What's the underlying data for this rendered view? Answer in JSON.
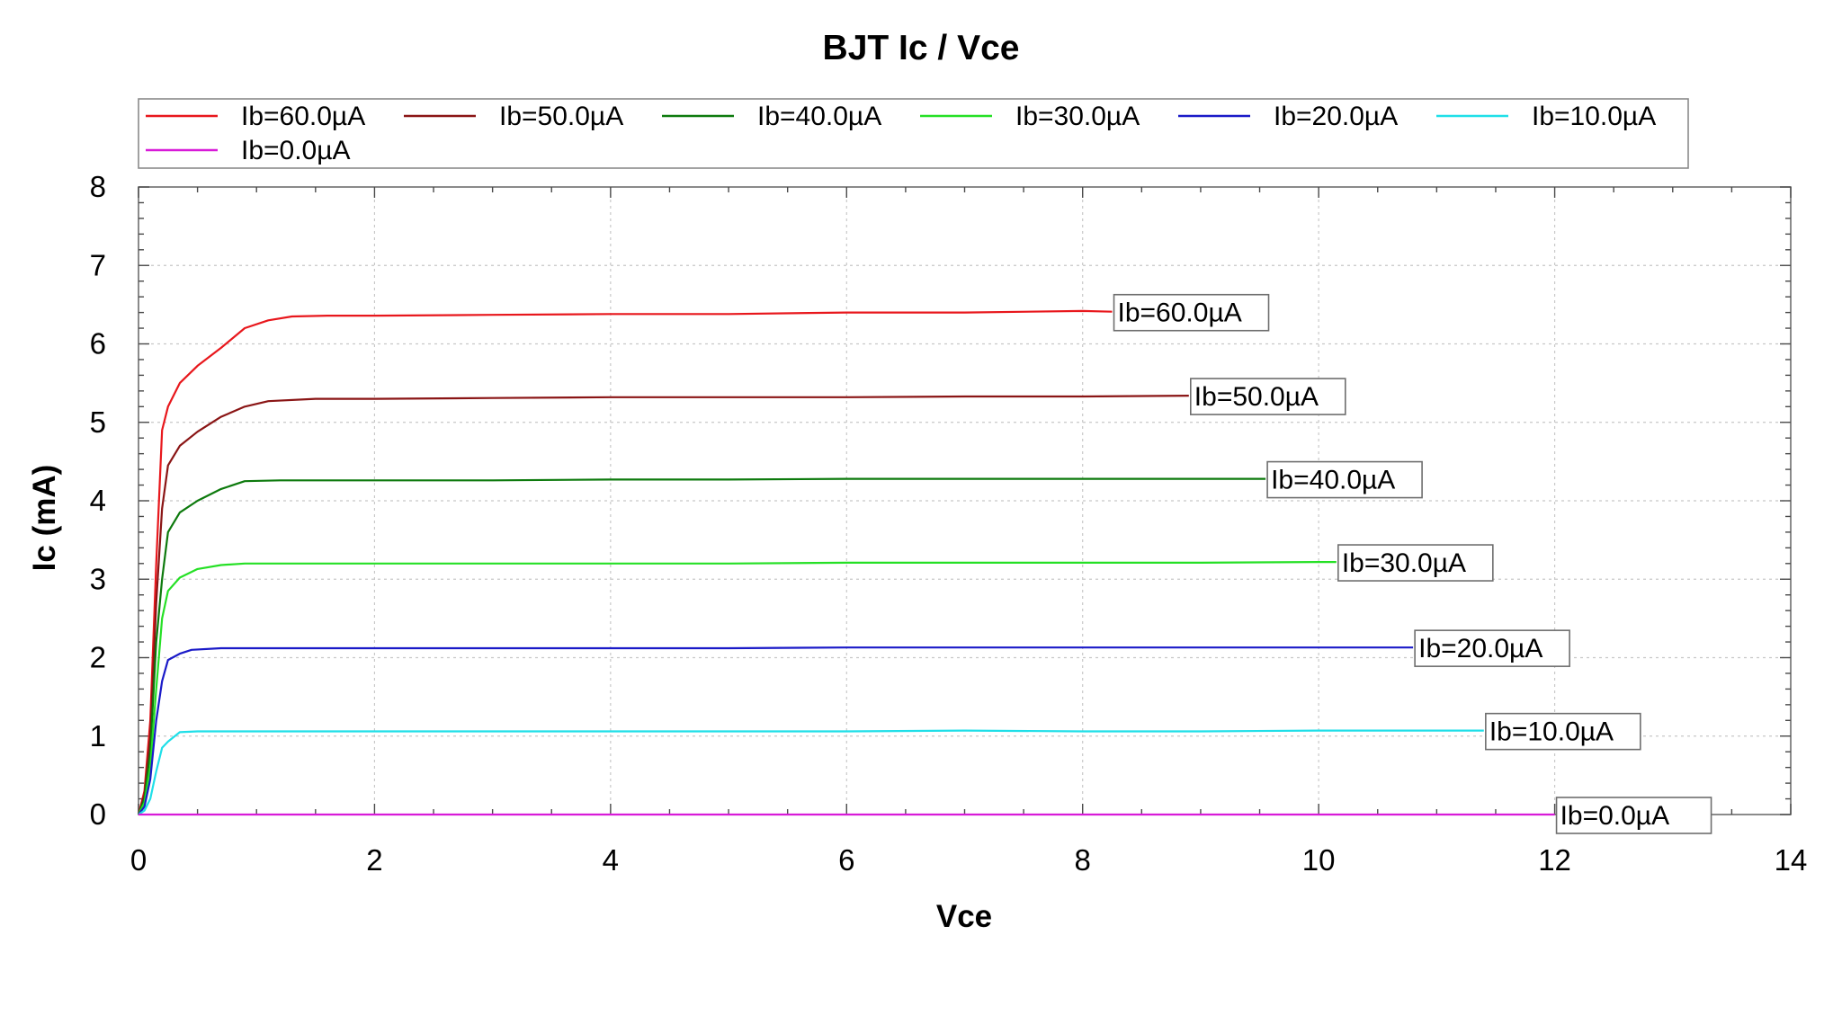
{
  "chart_data": {
    "type": "line",
    "title": "BJT Ic / Vce",
    "xlabel": "Vce",
    "ylabel": "Ic (mA)",
    "xlim": [
      0,
      14
    ],
    "ylim": [
      0,
      8
    ],
    "xticks": [
      "0",
      "2",
      "4",
      "6",
      "8",
      "10",
      "12",
      "14"
    ],
    "yticks": [
      "0",
      "1",
      "2",
      "3",
      "4",
      "5",
      "6",
      "7",
      "8"
    ],
    "grid": true,
    "legend": "top",
    "series": [
      {
        "name": "Ib=60.0µA",
        "color": "#e8171c",
        "end_label": "Ib=60.0µA",
        "points": [
          [
            0,
            0
          ],
          [
            0.05,
            0.3
          ],
          [
            0.1,
            1.2
          ],
          [
            0.15,
            3.2
          ],
          [
            0.2,
            4.9
          ],
          [
            0.25,
            5.2
          ],
          [
            0.35,
            5.5
          ],
          [
            0.5,
            5.72
          ],
          [
            0.7,
            5.95
          ],
          [
            0.9,
            6.2
          ],
          [
            1.1,
            6.3
          ],
          [
            1.3,
            6.35
          ],
          [
            1.6,
            6.36
          ],
          [
            2,
            6.36
          ],
          [
            3,
            6.37
          ],
          [
            4,
            6.38
          ],
          [
            5,
            6.38
          ],
          [
            6,
            6.4
          ],
          [
            7,
            6.4
          ],
          [
            8,
            6.42
          ],
          [
            8.25,
            6.41
          ]
        ]
      },
      {
        "name": "Ib=50.0µA",
        "color": "#8a1515",
        "end_label": "Ib=50.0µA",
        "points": [
          [
            0,
            0
          ],
          [
            0.05,
            0.25
          ],
          [
            0.1,
            1.0
          ],
          [
            0.15,
            2.7
          ],
          [
            0.2,
            3.9
          ],
          [
            0.25,
            4.45
          ],
          [
            0.35,
            4.7
          ],
          [
            0.5,
            4.88
          ],
          [
            0.7,
            5.07
          ],
          [
            0.9,
            5.2
          ],
          [
            1.1,
            5.27
          ],
          [
            1.5,
            5.3
          ],
          [
            2,
            5.3
          ],
          [
            3,
            5.31
          ],
          [
            4,
            5.32
          ],
          [
            5,
            5.32
          ],
          [
            6,
            5.32
          ],
          [
            7,
            5.33
          ],
          [
            8,
            5.33
          ],
          [
            8.9,
            5.34
          ]
        ]
      },
      {
        "name": "Ib=40.0µA",
        "color": "#0d7a0d",
        "end_label": "Ib=40.0µA",
        "points": [
          [
            0,
            0
          ],
          [
            0.05,
            0.2
          ],
          [
            0.1,
            0.8
          ],
          [
            0.15,
            2.2
          ],
          [
            0.2,
            3.0
          ],
          [
            0.25,
            3.6
          ],
          [
            0.35,
            3.85
          ],
          [
            0.5,
            4.0
          ],
          [
            0.7,
            4.15
          ],
          [
            0.9,
            4.25
          ],
          [
            1.2,
            4.26
          ],
          [
            2,
            4.26
          ],
          [
            3,
            4.26
          ],
          [
            4,
            4.27
          ],
          [
            5,
            4.27
          ],
          [
            6,
            4.28
          ],
          [
            7,
            4.28
          ],
          [
            8,
            4.28
          ],
          [
            9,
            4.28
          ],
          [
            9.55,
            4.28
          ]
        ]
      },
      {
        "name": "Ib=30.0µA",
        "color": "#25e025",
        "end_label": "Ib=30.0µA",
        "points": [
          [
            0,
            0
          ],
          [
            0.05,
            0.15
          ],
          [
            0.1,
            0.6
          ],
          [
            0.15,
            1.6
          ],
          [
            0.2,
            2.5
          ],
          [
            0.25,
            2.85
          ],
          [
            0.35,
            3.02
          ],
          [
            0.5,
            3.13
          ],
          [
            0.7,
            3.18
          ],
          [
            0.9,
            3.2
          ],
          [
            1.5,
            3.2
          ],
          [
            2,
            3.2
          ],
          [
            3,
            3.2
          ],
          [
            4,
            3.2
          ],
          [
            5,
            3.2
          ],
          [
            6,
            3.21
          ],
          [
            7,
            3.21
          ],
          [
            8,
            3.21
          ],
          [
            9,
            3.21
          ],
          [
            10,
            3.22
          ],
          [
            10.15,
            3.22
          ]
        ]
      },
      {
        "name": "Ib=20.0µA",
        "color": "#1a1ac8",
        "end_label": "Ib=20.0µA",
        "points": [
          [
            0,
            0
          ],
          [
            0.05,
            0.1
          ],
          [
            0.1,
            0.45
          ],
          [
            0.15,
            1.2
          ],
          [
            0.2,
            1.7
          ],
          [
            0.25,
            1.97
          ],
          [
            0.35,
            2.05
          ],
          [
            0.45,
            2.1
          ],
          [
            0.7,
            2.12
          ],
          [
            1,
            2.12
          ],
          [
            2,
            2.12
          ],
          [
            3,
            2.12
          ],
          [
            4,
            2.12
          ],
          [
            5,
            2.12
          ],
          [
            6,
            2.13
          ],
          [
            7,
            2.13
          ],
          [
            8,
            2.13
          ],
          [
            9,
            2.13
          ],
          [
            10,
            2.13
          ],
          [
            10.8,
            2.13
          ]
        ]
      },
      {
        "name": "Ib=10.0µA",
        "color": "#1fdfe8",
        "end_label": "Ib=10.0µA",
        "points": [
          [
            0,
            0
          ],
          [
            0.05,
            0.05
          ],
          [
            0.1,
            0.2
          ],
          [
            0.15,
            0.55
          ],
          [
            0.2,
            0.85
          ],
          [
            0.25,
            0.93
          ],
          [
            0.35,
            1.05
          ],
          [
            0.5,
            1.06
          ],
          [
            1,
            1.06
          ],
          [
            2,
            1.06
          ],
          [
            3,
            1.06
          ],
          [
            4,
            1.06
          ],
          [
            5,
            1.06
          ],
          [
            6,
            1.06
          ],
          [
            7,
            1.07
          ],
          [
            8,
            1.06
          ],
          [
            9,
            1.06
          ],
          [
            10,
            1.07
          ],
          [
            11,
            1.07
          ],
          [
            11.4,
            1.07
          ]
        ]
      },
      {
        "name": "Ib=0.0µA",
        "color": "#d81ad8",
        "end_label": "Ib=0.0µA",
        "points": [
          [
            0,
            0
          ],
          [
            1,
            0
          ],
          [
            2,
            0
          ],
          [
            4,
            0
          ],
          [
            6,
            0
          ],
          [
            8,
            0
          ],
          [
            10,
            0
          ],
          [
            12,
            0
          ]
        ]
      }
    ]
  }
}
